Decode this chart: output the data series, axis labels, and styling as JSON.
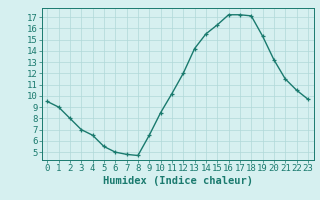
{
  "x": [
    0,
    1,
    2,
    3,
    4,
    5,
    6,
    7,
    8,
    9,
    10,
    11,
    12,
    13,
    14,
    15,
    16,
    17,
    18,
    19,
    20,
    21,
    22,
    23
  ],
  "y": [
    9.5,
    9.0,
    8.0,
    7.0,
    6.5,
    5.5,
    5.0,
    4.8,
    4.7,
    6.5,
    8.5,
    10.2,
    12.0,
    14.2,
    15.5,
    16.3,
    17.2,
    17.2,
    17.1,
    15.3,
    13.2,
    11.5,
    10.5,
    9.7
  ],
  "line_color": "#1a7a6e",
  "marker": "+",
  "marker_size": 3,
  "bg_color": "#d6f0f0",
  "grid_color": "#b0d8d8",
  "xlabel": "Humidex (Indice chaleur)",
  "xlim": [
    -0.5,
    23.5
  ],
  "ylim": [
    4.3,
    17.8
  ],
  "xticks": [
    0,
    1,
    2,
    3,
    4,
    5,
    6,
    7,
    8,
    9,
    10,
    11,
    12,
    13,
    14,
    15,
    16,
    17,
    18,
    19,
    20,
    21,
    22,
    23
  ],
  "yticks": [
    5,
    6,
    7,
    8,
    9,
    10,
    11,
    12,
    13,
    14,
    15,
    16,
    17
  ],
  "fg_color": "#1a7a6e",
  "tick_label_fontsize": 6.5,
  "xlabel_fontsize": 7.5,
  "linewidth": 1.0
}
